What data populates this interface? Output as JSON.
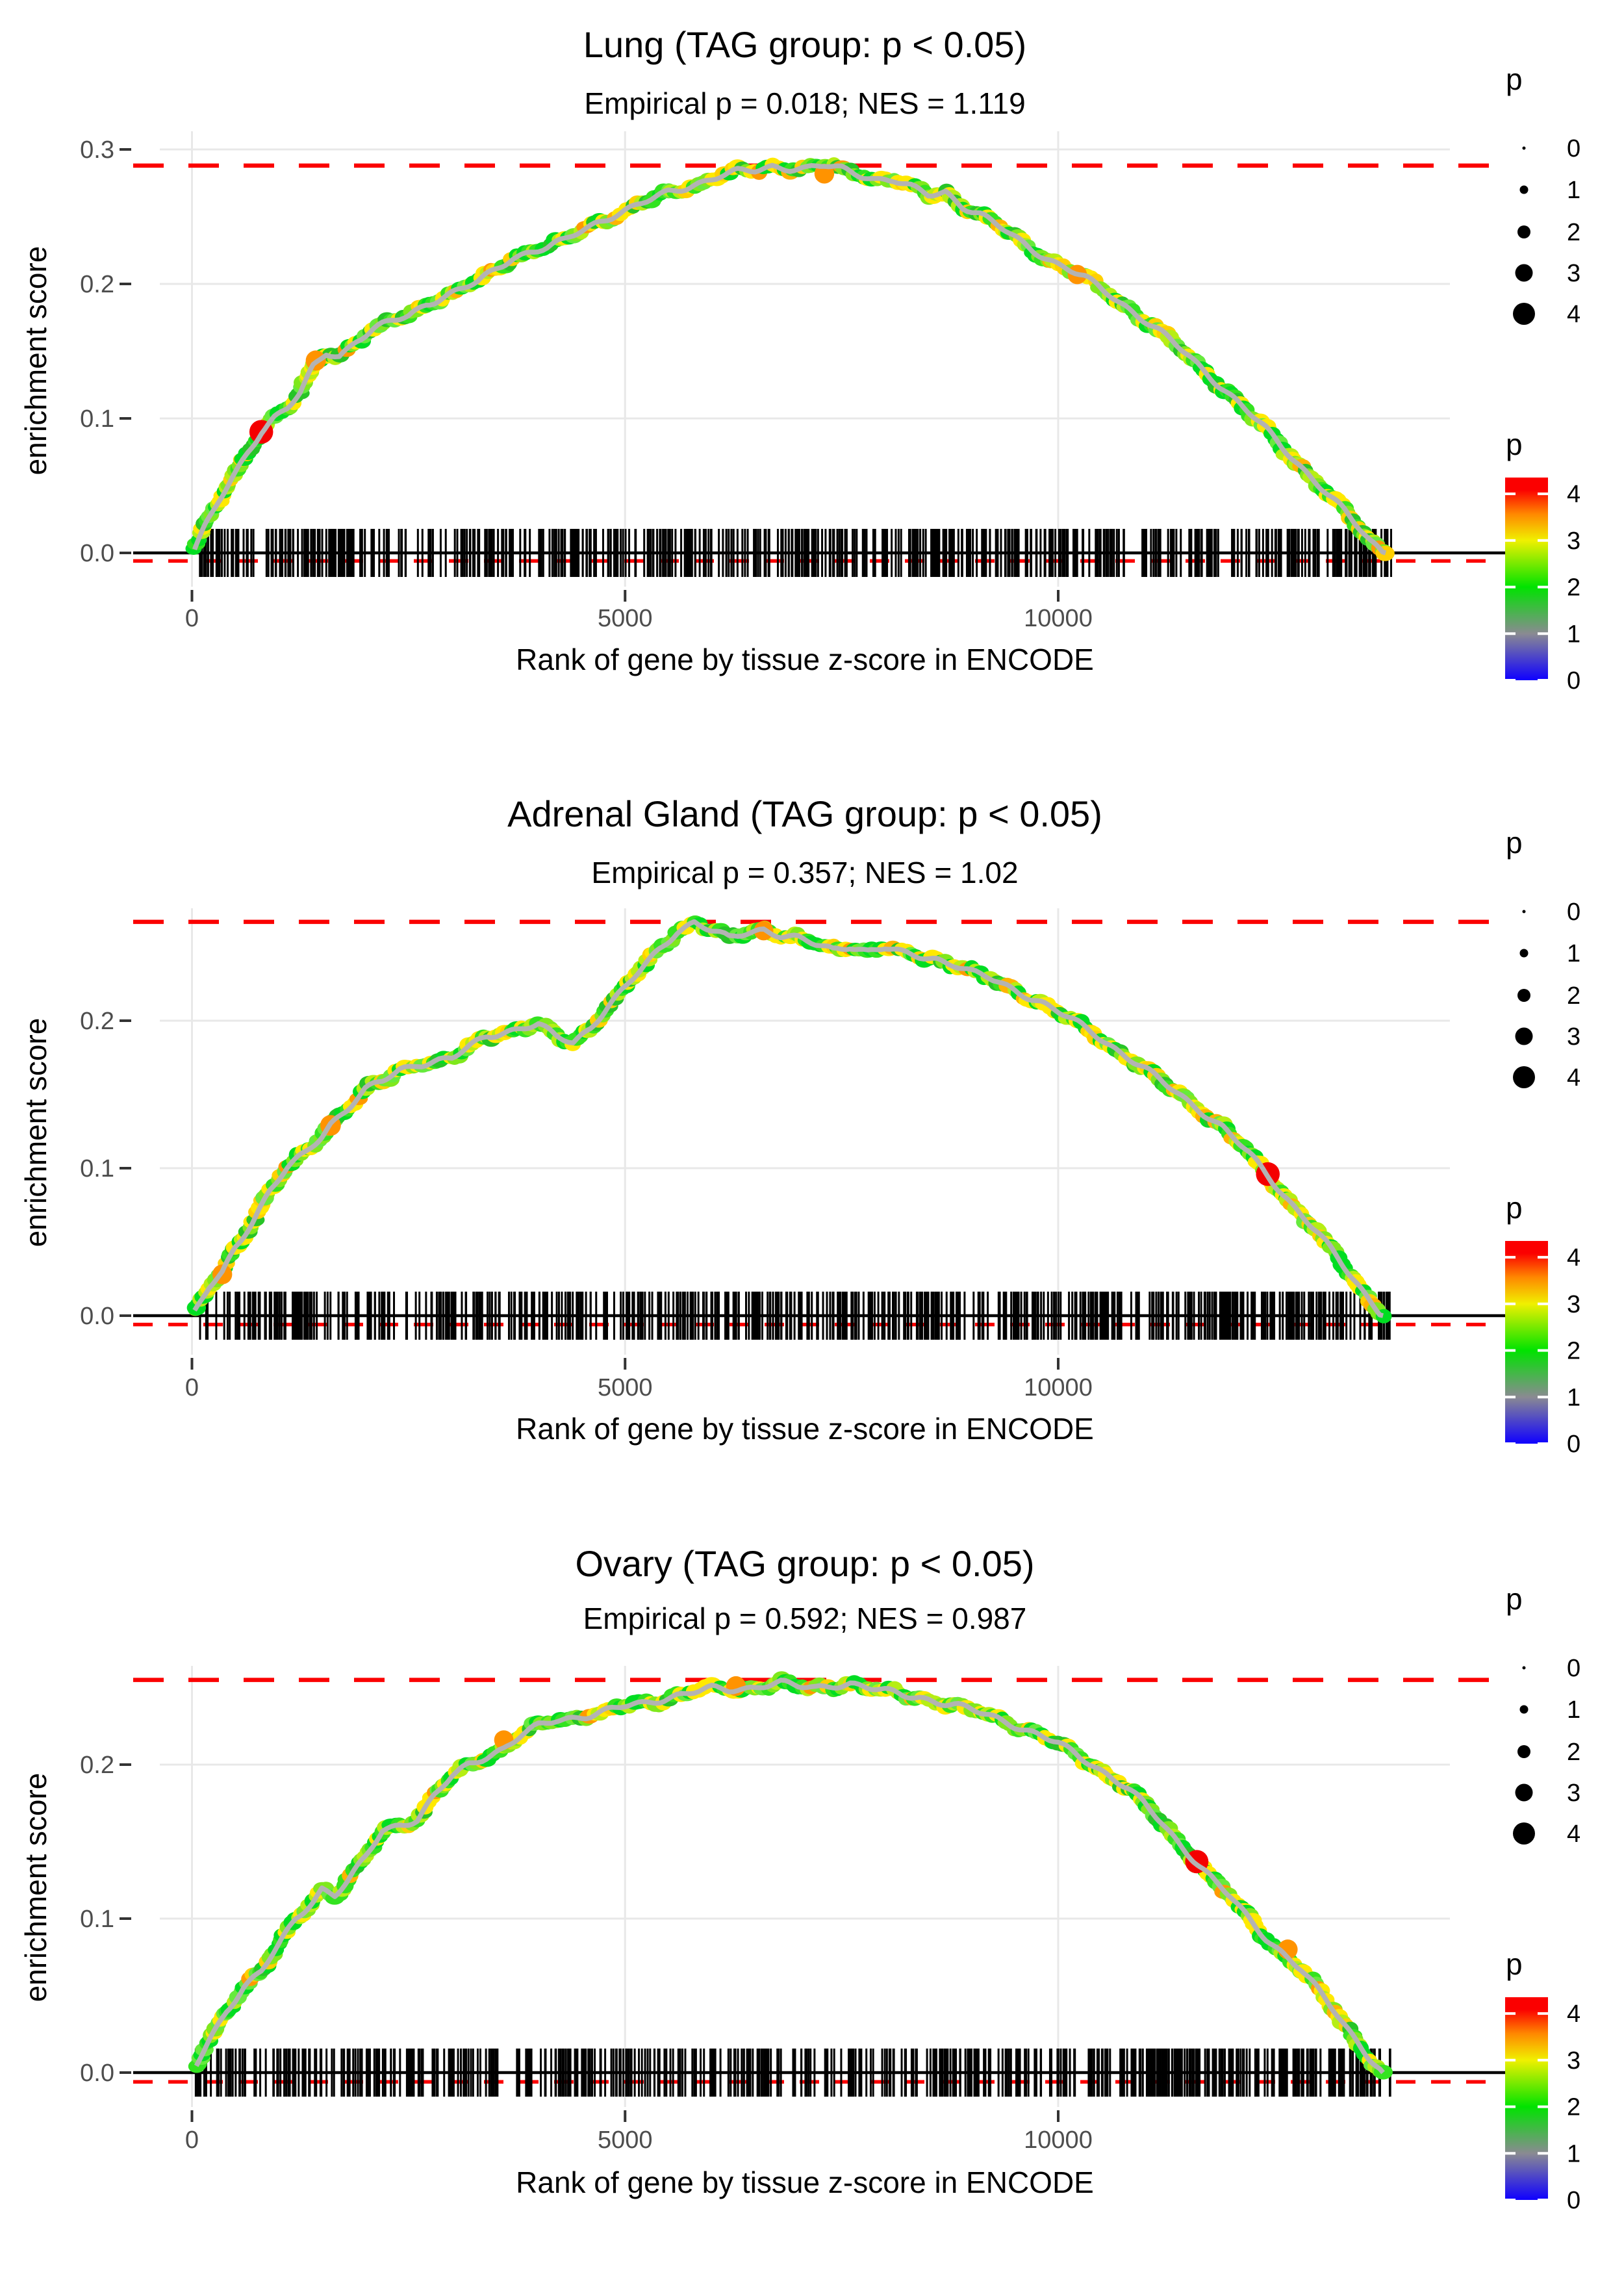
{
  "figure": {
    "x_axis_title": "Rank of gene by tissue z-score in ENCODE",
    "y_axis_title": "enrichment score",
    "legend_size_title": "p",
    "legend_color_title": "p"
  },
  "chart_data": [
    {
      "type": "line",
      "title": "Lung (TAG group: p < 0.05)",
      "subtitle": "Empirical p = 0.018; NES = 1.119",
      "xlabel": "Rank of gene by tissue z-score in ENCODE",
      "ylabel": "enrichment score",
      "x_ticks": [
        0,
        5000,
        10000
      ],
      "y_ticks": [
        0.0,
        0.1,
        0.2,
        0.3
      ],
      "xlim": [
        -700,
        15200
      ],
      "ylim": [
        -0.031,
        0.313
      ],
      "max_es_dashed_line": 0.288,
      "zero_dashed_line": -0.006,
      "curve": [
        [
          30,
          0.002
        ],
        [
          150,
          0.018
        ],
        [
          300,
          0.036
        ],
        [
          500,
          0.058
        ],
        [
          650,
          0.075
        ],
        [
          800,
          0.09
        ],
        [
          950,
          0.1
        ],
        [
          1100,
          0.107
        ],
        [
          1250,
          0.118
        ],
        [
          1400,
          0.138
        ],
        [
          1550,
          0.149
        ],
        [
          1700,
          0.147
        ],
        [
          1900,
          0.159
        ],
        [
          2100,
          0.167
        ],
        [
          2300,
          0.173
        ],
        [
          2500,
          0.177
        ],
        [
          2700,
          0.186
        ],
        [
          2900,
          0.191
        ],
        [
          3100,
          0.196
        ],
        [
          3300,
          0.201
        ],
        [
          3500,
          0.21
        ],
        [
          3700,
          0.219
        ],
        [
          3900,
          0.223
        ],
        [
          4100,
          0.226
        ],
        [
          4300,
          0.231
        ],
        [
          4500,
          0.239
        ],
        [
          4700,
          0.246
        ],
        [
          4900,
          0.252
        ],
        [
          5100,
          0.257
        ],
        [
          5300,
          0.263
        ],
        [
          5500,
          0.269
        ],
        [
          5700,
          0.273
        ],
        [
          5900,
          0.277
        ],
        [
          6100,
          0.281
        ],
        [
          6300,
          0.284
        ],
        [
          6500,
          0.285
        ],
        [
          6700,
          0.288
        ],
        [
          6900,
          0.286
        ],
        [
          7100,
          0.285
        ],
        [
          7300,
          0.287
        ],
        [
          7500,
          0.285
        ],
        [
          7700,
          0.281
        ],
        [
          7900,
          0.277
        ],
        [
          8100,
          0.276
        ],
        [
          8300,
          0.271
        ],
        [
          8500,
          0.266
        ],
        [
          8700,
          0.269
        ],
        [
          8900,
          0.258
        ],
        [
          9100,
          0.252
        ],
        [
          9400,
          0.24
        ],
        [
          9700,
          0.227
        ],
        [
          10000,
          0.215
        ],
        [
          10300,
          0.205
        ],
        [
          10600,
          0.192
        ],
        [
          10900,
          0.177
        ],
        [
          11200,
          0.162
        ],
        [
          11500,
          0.146
        ],
        [
          11800,
          0.128
        ],
        [
          12100,
          0.11
        ],
        [
          12400,
          0.092
        ],
        [
          12700,
          0.072
        ],
        [
          13000,
          0.052
        ],
        [
          13300,
          0.032
        ],
        [
          13600,
          0.01
        ],
        [
          13780,
          0
        ]
      ],
      "highlight_points": [
        {
          "rank": 800,
          "es": 0.09,
          "p": 4.2
        },
        {
          "rank": 1430,
          "es": 0.143,
          "p": 3.4
        },
        {
          "rank": 7300,
          "es": 0.282,
          "p": 3.3
        },
        {
          "rank": 10220,
          "es": 0.207,
          "p": 3.2
        }
      ],
      "rug": {
        "count": 560,
        "min_rank": 30,
        "max_rank": 13850
      },
      "legend_size": {
        "title": "p",
        "values": [
          0,
          1,
          2,
          3,
          4
        ]
      },
      "legend_color": {
        "title": "p",
        "values": [
          4,
          3,
          2,
          1,
          0
        ],
        "min": 0,
        "max": 4.35
      }
    },
    {
      "type": "line",
      "title": "Adrenal Gland (TAG group: p < 0.05)",
      "subtitle": "Empirical p = 0.357; NES = 1.02",
      "xlabel": "Rank of gene by tissue z-score in ENCODE",
      "ylabel": "enrichment score",
      "x_ticks": [
        0,
        5000,
        10000
      ],
      "y_ticks": [
        0.0,
        0.1,
        0.2
      ],
      "xlim": [
        -700,
        15200
      ],
      "ylim": [
        -0.026,
        0.277
      ],
      "max_es_dashed_line": 0.267,
      "zero_dashed_line": -0.006,
      "curve": [
        [
          30,
          0.002
        ],
        [
          200,
          0.02
        ],
        [
          350,
          0.03
        ],
        [
          500,
          0.048
        ],
        [
          700,
          0.065
        ],
        [
          900,
          0.085
        ],
        [
          1100,
          0.1
        ],
        [
          1300,
          0.11
        ],
        [
          1500,
          0.122
        ],
        [
          1600,
          0.13
        ],
        [
          1800,
          0.14
        ],
        [
          2000,
          0.152
        ],
        [
          2200,
          0.158
        ],
        [
          2400,
          0.166
        ],
        [
          2600,
          0.17
        ],
        [
          2800,
          0.172
        ],
        [
          3000,
          0.174
        ],
        [
          3200,
          0.182
        ],
        [
          3400,
          0.19
        ],
        [
          3600,
          0.193
        ],
        [
          3800,
          0.196
        ],
        [
          4000,
          0.198
        ],
        [
          4200,
          0.19
        ],
        [
          4400,
          0.186
        ],
        [
          4600,
          0.196
        ],
        [
          4800,
          0.21
        ],
        [
          5000,
          0.222
        ],
        [
          5200,
          0.235
        ],
        [
          5400,
          0.248
        ],
        [
          5600,
          0.26
        ],
        [
          5800,
          0.266
        ],
        [
          6000,
          0.26
        ],
        [
          6200,
          0.255
        ],
        [
          6400,
          0.259
        ],
        [
          6600,
          0.262
        ],
        [
          6800,
          0.258
        ],
        [
          7000,
          0.256
        ],
        [
          7200,
          0.252
        ],
        [
          7400,
          0.249
        ],
        [
          7600,
          0.252
        ],
        [
          7800,
          0.248
        ],
        [
          8000,
          0.25
        ],
        [
          8200,
          0.246
        ],
        [
          8400,
          0.244
        ],
        [
          8600,
          0.242
        ],
        [
          8800,
          0.238
        ],
        [
          9000,
          0.232
        ],
        [
          9200,
          0.228
        ],
        [
          9500,
          0.22
        ],
        [
          9800,
          0.212
        ],
        [
          10100,
          0.202
        ],
        [
          10400,
          0.192
        ],
        [
          10700,
          0.18
        ],
        [
          11000,
          0.168
        ],
        [
          11300,
          0.155
        ],
        [
          11600,
          0.142
        ],
        [
          11900,
          0.128
        ],
        [
          12200,
          0.11
        ],
        [
          12400,
          0.096
        ],
        [
          12700,
          0.075
        ],
        [
          13000,
          0.055
        ],
        [
          13300,
          0.032
        ],
        [
          13600,
          0.01
        ],
        [
          13750,
          0
        ]
      ],
      "highlight_points": [
        {
          "rank": 350,
          "es": 0.028,
          "p": 3.3
        },
        {
          "rank": 1600,
          "es": 0.129,
          "p": 3.5
        },
        {
          "rank": 6600,
          "es": 0.261,
          "p": 3.2
        },
        {
          "rank": 12420,
          "es": 0.096,
          "p": 4.2
        }
      ],
      "rug": {
        "count": 560,
        "min_rank": 30,
        "max_rank": 13850
      },
      "legend_size": {
        "title": "p",
        "values": [
          0,
          1,
          2,
          3,
          4
        ]
      },
      "legend_color": {
        "title": "p",
        "values": [
          4,
          3,
          2,
          1,
          0
        ],
        "min": 0,
        "max": 4.35
      }
    },
    {
      "type": "line",
      "title": "Ovary (TAG group: p < 0.05)",
      "subtitle": "Empirical p = 0.592; NES = 0.987",
      "xlabel": "Rank of gene by tissue z-score in ENCODE",
      "ylabel": "enrichment score",
      "x_ticks": [
        0,
        5000,
        10000
      ],
      "y_ticks": [
        0.0,
        0.1,
        0.2
      ],
      "xlim": [
        -700,
        15200
      ],
      "ylim": [
        -0.024,
        0.266
      ],
      "max_es_dashed_line": 0.255,
      "zero_dashed_line": -0.006,
      "curve": [
        [
          50,
          0.004
        ],
        [
          200,
          0.02
        ],
        [
          400,
          0.04
        ],
        [
          600,
          0.055
        ],
        [
          800,
          0.065
        ],
        [
          1000,
          0.082
        ],
        [
          1200,
          0.1
        ],
        [
          1400,
          0.112
        ],
        [
          1500,
          0.12
        ],
        [
          1650,
          0.116
        ],
        [
          1800,
          0.125
        ],
        [
          2000,
          0.14
        ],
        [
          2200,
          0.158
        ],
        [
          2400,
          0.162
        ],
        [
          2600,
          0.165
        ],
        [
          2800,
          0.18
        ],
        [
          3000,
          0.192
        ],
        [
          3200,
          0.2
        ],
        [
          3400,
          0.205
        ],
        [
          3600,
          0.21
        ],
        [
          3800,
          0.218
        ],
        [
          4000,
          0.224
        ],
        [
          4200,
          0.228
        ],
        [
          4400,
          0.23
        ],
        [
          4600,
          0.232
        ],
        [
          4800,
          0.235
        ],
        [
          5000,
          0.238
        ],
        [
          5200,
          0.24
        ],
        [
          5400,
          0.243
        ],
        [
          5600,
          0.246
        ],
        [
          5800,
          0.248
        ],
        [
          6000,
          0.25
        ],
        [
          6200,
          0.249
        ],
        [
          6400,
          0.25
        ],
        [
          6600,
          0.252
        ],
        [
          6800,
          0.253
        ],
        [
          7000,
          0.25
        ],
        [
          7200,
          0.249
        ],
        [
          7400,
          0.251
        ],
        [
          7600,
          0.252
        ],
        [
          7800,
          0.249
        ],
        [
          8000,
          0.247
        ],
        [
          8200,
          0.245
        ],
        [
          8400,
          0.244
        ],
        [
          8600,
          0.241
        ],
        [
          8800,
          0.239
        ],
        [
          9000,
          0.236
        ],
        [
          9200,
          0.233
        ],
        [
          9400,
          0.229
        ],
        [
          9600,
          0.224
        ],
        [
          9800,
          0.219
        ],
        [
          10000,
          0.214
        ],
        [
          10200,
          0.207
        ],
        [
          10400,
          0.2
        ],
        [
          10600,
          0.192
        ],
        [
          10800,
          0.184
        ],
        [
          11000,
          0.173
        ],
        [
          11200,
          0.161
        ],
        [
          11400,
          0.148
        ],
        [
          11600,
          0.136
        ],
        [
          11800,
          0.124
        ],
        [
          12000,
          0.113
        ],
        [
          12200,
          0.1
        ],
        [
          12400,
          0.088
        ],
        [
          12600,
          0.078
        ],
        [
          12800,
          0.068
        ],
        [
          13000,
          0.054
        ],
        [
          13200,
          0.04
        ],
        [
          13400,
          0.025
        ],
        [
          13600,
          0.01
        ],
        [
          13750,
          0
        ]
      ],
      "highlight_points": [
        {
          "rank": 3600,
          "es": 0.216,
          "p": 3.2
        },
        {
          "rank": 6280,
          "es": 0.251,
          "p": 3.3
        },
        {
          "rank": 11600,
          "es": 0.137,
          "p": 4.1
        },
        {
          "rank": 12650,
          "es": 0.08,
          "p": 3.3
        }
      ],
      "rug": {
        "count": 560,
        "min_rank": 30,
        "max_rank": 13850
      },
      "legend_size": {
        "title": "p",
        "values": [
          0,
          1,
          2,
          3,
          4
        ]
      },
      "legend_color": {
        "title": "p",
        "values": [
          4,
          3,
          2,
          1,
          0
        ],
        "min": 0,
        "max": 4.35
      }
    }
  ],
  "colors": {
    "dashed_line": "#fb0000",
    "zero_line": "#000000",
    "gridline": "#e8e8e8",
    "curve_core": "#b3b3b3",
    "axis_text": "#4d4d4d",
    "highlight_red": "#f40000",
    "highlight_orange": "#ff9300",
    "gradient_stops": [
      "#0f00ff",
      "#8a8a92",
      "#00e300",
      "#f0f000",
      "#ff8800",
      "#fb0000"
    ]
  }
}
